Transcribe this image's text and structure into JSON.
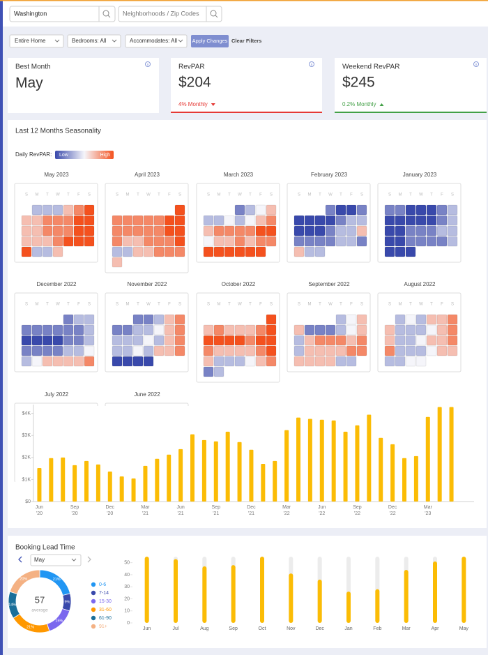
{
  "search": {
    "location": "Washington",
    "neighborhood_placeholder": "Neighborhoods / Zip Codes"
  },
  "filters": {
    "home_type": "Entire Home",
    "bedrooms": "Bedrooms: All",
    "accommodates": "Accommodates: All",
    "apply": "Apply Changes",
    "clear": "Clear Filters"
  },
  "cards": [
    {
      "label": "Best Month",
      "value": "May"
    },
    {
      "label": "RevPAR",
      "value": "$204",
      "change": "4% Monthly",
      "trend": "down"
    },
    {
      "label": "Weekend RevPAR",
      "value": "$245",
      "change": "0.2% Monthly",
      "trend": "up"
    }
  ],
  "chart_data": [
    {
      "type": "calendar",
      "title": "Last 12 Months Seasonality",
      "legend_label": "Daily RevPAR:",
      "low_label": "Low",
      "high_label": "High",
      "weekdays": [
        "S",
        "M",
        "T",
        "W",
        "T",
        "F",
        "S"
      ],
      "zlim": [
        -3,
        3
      ],
      "low_color": "#3949ab",
      "mid_color": "#f5f5fa",
      "high_color": "#f4511e",
      "months": [
        {
          "name": "May 2023",
          "values": [
            -1,
            -1,
            -1,
            1,
            2,
            3,
            1,
            1,
            2,
            2,
            2,
            3,
            3,
            1,
            1,
            2,
            2,
            2,
            3,
            3,
            1,
            1,
            1,
            2,
            3,
            3,
            3,
            3,
            -1,
            -1,
            1
          ]
        },
        {
          "name": "April 2023",
          "values": [
            3,
            2,
            2,
            2,
            2,
            2,
            3,
            3,
            2,
            2,
            2,
            2,
            2,
            3,
            3,
            2,
            1,
            1,
            2,
            2,
            2,
            3,
            -1,
            -1,
            1,
            1,
            2,
            2,
            2,
            1
          ]
        },
        {
          "name": "March 2023",
          "values": [
            -2,
            -1,
            0,
            1,
            -1,
            -1,
            0,
            -1,
            0,
            1,
            2,
            1,
            2,
            2,
            2,
            2,
            3,
            3,
            0,
            1,
            1,
            2,
            1,
            2,
            2,
            3,
            3,
            3,
            3,
            3,
            3
          ]
        },
        {
          "name": "February 2023",
          "values": [
            -2,
            -3,
            -3,
            -2,
            -3,
            -3,
            -3,
            -3,
            -2,
            -1,
            -1,
            -3,
            -3,
            -3,
            -2,
            -1,
            -1,
            1,
            -2,
            -2,
            -2,
            -2,
            -1,
            -1,
            -2,
            1,
            -1,
            -1
          ]
        },
        {
          "name": "January 2023",
          "values": [
            -2,
            -2,
            -3,
            -3,
            -3,
            -2,
            -1,
            -3,
            -3,
            -3,
            -3,
            -3,
            -2,
            -1,
            -3,
            -3,
            -2,
            -2,
            -2,
            -1,
            -1,
            -3,
            -3,
            -2,
            -2,
            -2,
            -2,
            -1,
            -3,
            -3,
            -3
          ]
        },
        {
          "name": "December 2022",
          "values": [
            -2,
            -1,
            -1,
            -2,
            -2,
            -2,
            -2,
            -2,
            -2,
            -1,
            -3,
            -3,
            -3,
            -3,
            -2,
            -2,
            -1,
            -2,
            -2,
            -2,
            -2,
            -1,
            -1,
            0,
            -1,
            0,
            1,
            1,
            1,
            1,
            2
          ]
        },
        {
          "name": "November 2022",
          "values": [
            -2,
            -2,
            -1,
            1,
            2,
            -2,
            -2,
            -1,
            -1,
            0,
            1,
            2,
            -1,
            -1,
            -1,
            0,
            -1,
            1,
            2,
            -1,
            -1,
            0,
            -1,
            1,
            1,
            2,
            -3,
            -3,
            -3,
            -3
          ]
        },
        {
          "name": "October 2022",
          "values": [
            3,
            1,
            2,
            1,
            1,
            1,
            2,
            3,
            3,
            3,
            3,
            3,
            2,
            3,
            3,
            2,
            1,
            1,
            1,
            1,
            2,
            3,
            1,
            -1,
            -1,
            -1,
            0,
            1,
            2,
            -2,
            -1
          ]
        },
        {
          "name": "September 2022",
          "values": [
            -1,
            0,
            1,
            1,
            -2,
            -2,
            -2,
            -1,
            0,
            1,
            -1,
            1,
            2,
            2,
            2,
            1,
            2,
            -1,
            1,
            1,
            1,
            1,
            2,
            2,
            1,
            1,
            1,
            1,
            -1,
            -1
          ]
        },
        {
          "name": "August 2022",
          "values": [
            -1,
            0,
            -1,
            1,
            1,
            2,
            1,
            -1,
            -1,
            -1,
            0,
            1,
            2,
            1,
            -1,
            -1,
            0,
            1,
            1,
            2,
            2,
            -1,
            -1,
            -1,
            0,
            1,
            1,
            -1,
            -1,
            0,
            0
          ]
        },
        {
          "name": "July 2022"
        },
        {
          "name": "June 2022"
        }
      ]
    },
    {
      "type": "bar",
      "color": "#fbbc05",
      "categories": [
        "Jun '20",
        null,
        null,
        "Sep '20",
        null,
        null,
        "Dec '20",
        null,
        null,
        "Mar '21",
        null,
        null,
        "Jun '21",
        null,
        null,
        "Sep '21",
        null,
        null,
        "Dec '21",
        null,
        null,
        "Mar '22",
        null,
        null,
        "Jun '22",
        null,
        null,
        "Sep '22",
        null,
        null,
        "Dec '22",
        null,
        null,
        "Mar '23",
        null,
        null
      ],
      "values": [
        1520,
        1970,
        2000,
        1650,
        1840,
        1680,
        1360,
        1140,
        1050,
        1620,
        1940,
        2130,
        2380,
        3050,
        2790,
        2730,
        3170,
        2700,
        2350,
        1710,
        1840,
        3240,
        3810,
        3750,
        3710,
        3680,
        3170,
        3460,
        3940,
        2890,
        2600,
        1970,
        2060,
        3840,
        4290,
        4290
      ],
      "ylim": [
        0,
        4400
      ],
      "yticks": [
        {
          "value": 0,
          "label": "$0"
        },
        {
          "value": 1000,
          "label": "$1K"
        },
        {
          "value": 2000,
          "label": "$2K"
        },
        {
          "value": 3000,
          "label": "$3K"
        },
        {
          "value": 4000,
          "label": "$4K"
        }
      ]
    },
    {
      "type": "pie",
      "title": "Booking Lead Time",
      "selected": "May",
      "center_value": 57,
      "center_label": "average",
      "categories": [
        "0-6",
        "7-14",
        "15-30",
        "31-60",
        "61-90",
        "91+"
      ],
      "values": [
        21,
        9,
        15,
        21,
        14,
        20
      ],
      "value_labels": [
        "21%",
        "9%",
        "15%",
        "21%",
        "14%",
        "20%"
      ],
      "colors": [
        "#2196f3",
        "#3949ab",
        "#7b68ee",
        "#ff9800",
        "#1a6f9a",
        "#f4b183"
      ]
    },
    {
      "type": "bar",
      "color": "#fbbc05",
      "track_color": "#ececec",
      "categories": [
        "Jun",
        "Jul",
        "Aug",
        "Sep",
        "Oct",
        "Nov",
        "Dec",
        "Jan",
        "Feb",
        "Mar",
        "Apr",
        "May"
      ],
      "values": [
        55,
        53,
        47,
        48,
        55,
        41,
        36,
        26,
        28,
        44,
        51,
        55
      ],
      "ylim": [
        0,
        55
      ],
      "yticks": [
        0,
        10,
        20,
        30,
        40,
        50
      ]
    }
  ]
}
